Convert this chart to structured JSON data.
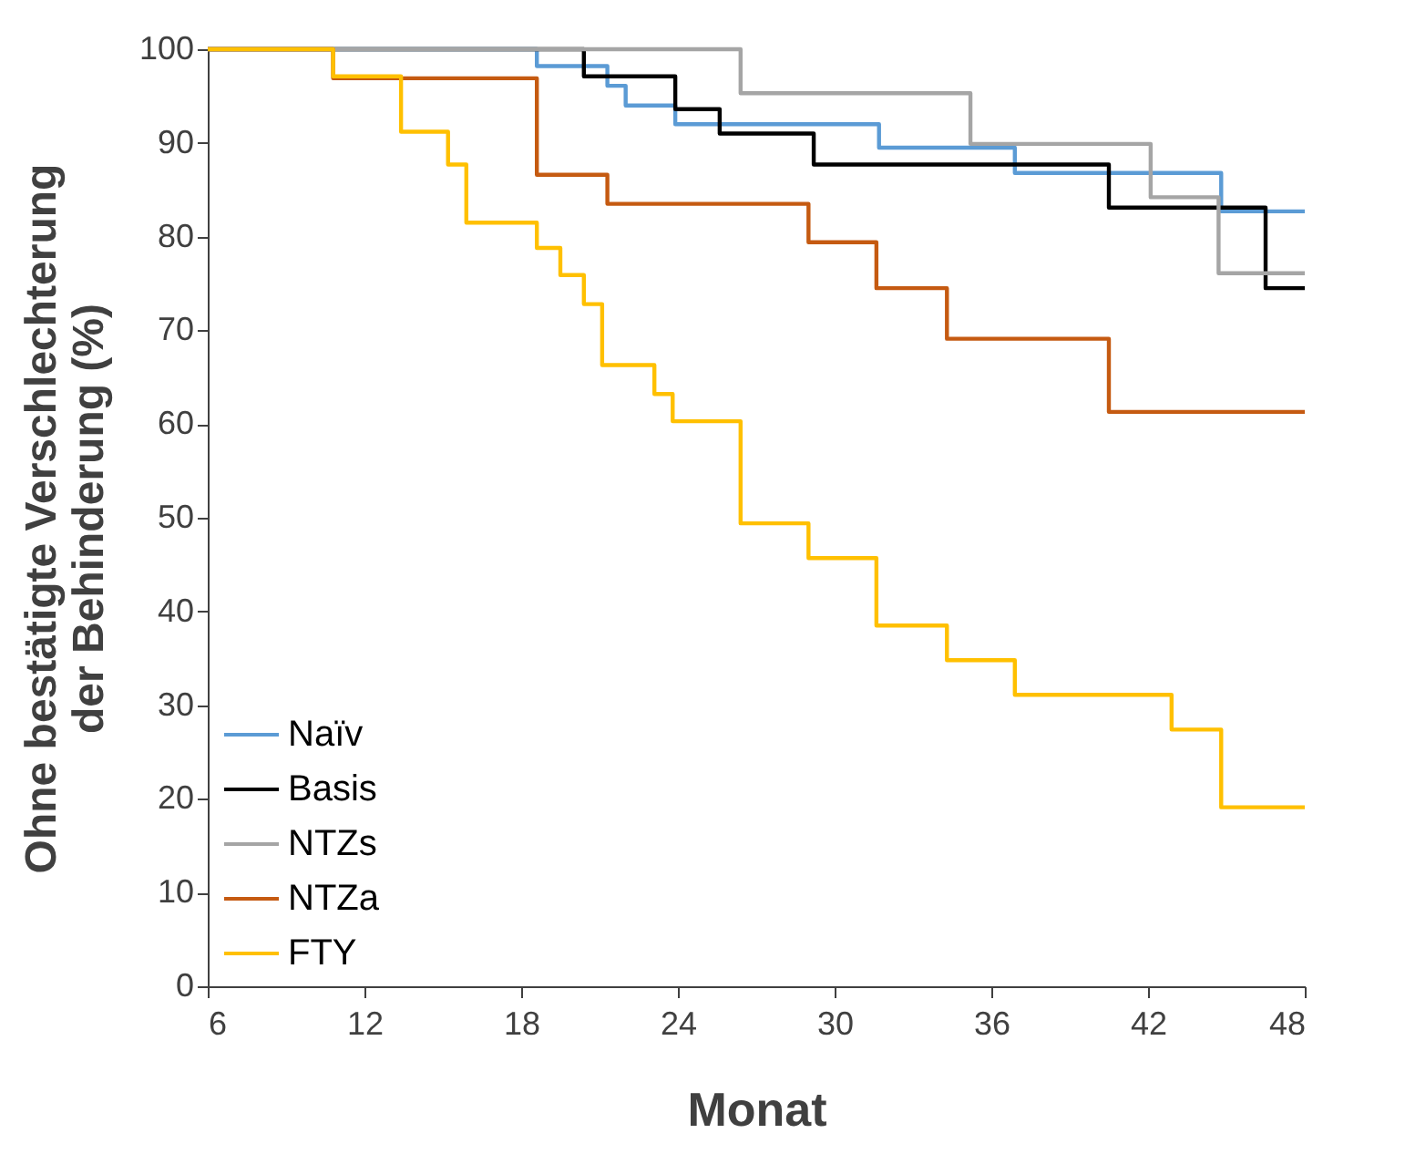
{
  "chart_data": {
    "type": "step",
    "xlabel": "Monat",
    "ylabel": "Ohne bestätigte Verschlechterung\nder Behinderung (%)",
    "xlim": [
      6,
      48
    ],
    "xticks": [
      6,
      12,
      18,
      24,
      30,
      36,
      42,
      48
    ],
    "ylim": [
      0,
      100
    ],
    "yticks": [
      0,
      10,
      20,
      30,
      40,
      50,
      60,
      70,
      80,
      90,
      100
    ],
    "grid": false,
    "legend": "bottom left",
    "line_style": "solid",
    "marker": "none",
    "series": [
      {
        "name": "Naïv",
        "color": "#5b9bd5",
        "x": [
          6,
          18.6,
          21.3,
          22.0,
          23.9,
          31.7,
          36.9,
          44.8,
          48
        ],
        "values": [
          100,
          98.2,
          96.1,
          94.0,
          92.0,
          89.5,
          86.8,
          82.7,
          82.7
        ]
      },
      {
        "name": "Basis",
        "color": "#000000",
        "x": [
          6,
          20.4,
          23.9,
          25.6,
          29.2,
          40.5,
          46.5,
          48
        ],
        "values": [
          100,
          97.1,
          93.6,
          91.0,
          87.7,
          83.1,
          74.5,
          74.5
        ]
      },
      {
        "name": "NTZs",
        "color": "#a5a5a5",
        "x": [
          6,
          26.4,
          35.2,
          42.1,
          44.7,
          48
        ],
        "values": [
          100,
          95.3,
          89.9,
          84.2,
          76.1,
          76.1
        ]
      },
      {
        "name": "NTZa",
        "color": "#c55a11",
        "x": [
          6,
          10.8,
          18.6,
          21.3,
          29.0,
          31.6,
          34.3,
          40.5,
          48
        ],
        "values": [
          100,
          96.9,
          86.6,
          83.5,
          79.4,
          74.5,
          69.1,
          61.3,
          61.3
        ]
      },
      {
        "name": "FTY",
        "color": "#ffc000",
        "x": [
          6,
          10.8,
          13.4,
          15.2,
          15.9,
          18.6,
          19.5,
          20.4,
          21.1,
          23.1,
          23.8,
          26.4,
          29.0,
          31.6,
          34.3,
          36.9,
          42.9,
          44.8,
          48
        ],
        "values": [
          100,
          97.1,
          91.2,
          87.7,
          81.5,
          78.8,
          75.9,
          72.8,
          66.3,
          63.2,
          60.3,
          49.4,
          45.7,
          38.5,
          34.8,
          31.1,
          27.4,
          19.1,
          19.1
        ]
      }
    ]
  }
}
